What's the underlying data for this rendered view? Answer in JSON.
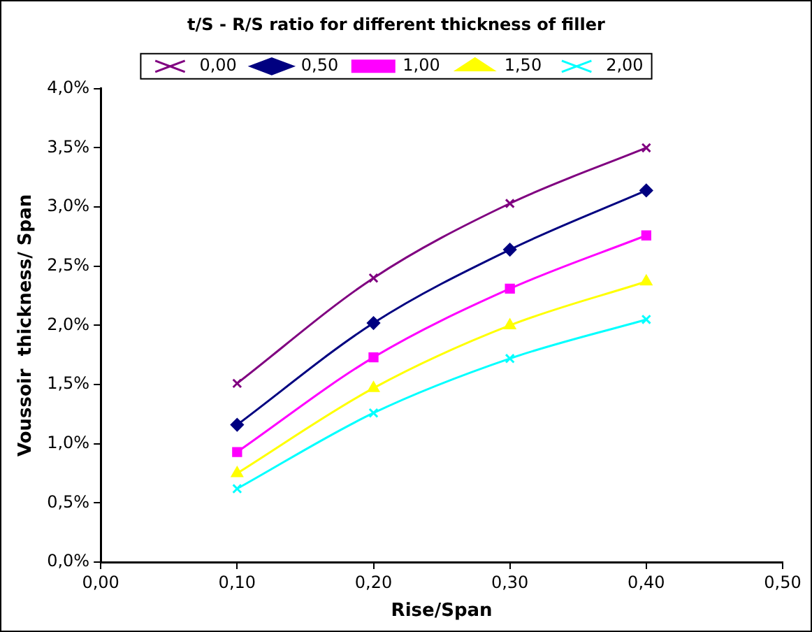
{
  "chart_data": {
    "type": "line",
    "title": "t/S - R/S ratio for different thickness of filler",
    "xlabel": "Rise/Span",
    "ylabel": "Voussoir  thickness/ Span",
    "x": [
      0.1,
      0.2,
      0.3,
      0.4
    ],
    "series": [
      {
        "name": "0,00",
        "color": "#800080",
        "marker": "cross",
        "values": [
          1.51,
          2.4,
          3.03,
          3.5
        ]
      },
      {
        "name": "0,50",
        "color": "#000080",
        "marker": "diamond",
        "values": [
          1.16,
          2.02,
          2.64,
          3.14
        ]
      },
      {
        "name": "1,00",
        "color": "#ff00ff",
        "marker": "square",
        "values": [
          0.93,
          1.73,
          2.31,
          2.76
        ]
      },
      {
        "name": "1,50",
        "color": "#ffff00",
        "marker": "triangle",
        "values": [
          0.75,
          1.47,
          2.0,
          2.37
        ]
      },
      {
        "name": "2,00",
        "color": "#00ffff",
        "marker": "cross",
        "values": [
          0.62,
          1.26,
          1.72,
          2.05
        ]
      }
    ],
    "xlim": [
      0,
      0.5
    ],
    "xticks": [
      {
        "value": 0,
        "label": "0,00"
      },
      {
        "value": 0.1,
        "label": "0,10"
      },
      {
        "value": 0.2,
        "label": "0,20"
      },
      {
        "value": 0.3,
        "label": "0,30"
      },
      {
        "value": 0.4,
        "label": "0,40"
      },
      {
        "value": 0.5,
        "label": "0,50"
      }
    ],
    "ylim": [
      0,
      4
    ],
    "yticks": [
      {
        "value": 0,
        "label": "0,0%"
      },
      {
        "value": 0.5,
        "label": "0,5%"
      },
      {
        "value": 1,
        "label": "1,0%"
      },
      {
        "value": 1.5,
        "label": "1,5%"
      },
      {
        "value": 2,
        "label": "2,0%"
      },
      {
        "value": 2.5,
        "label": "2,5%"
      },
      {
        "value": 3,
        "label": "3,0%"
      },
      {
        "value": 3.5,
        "label": "3,5%"
      },
      {
        "value": 4,
        "label": "4,0%"
      }
    ],
    "grid": false,
    "legend": "top",
    "line_style": "solid"
  }
}
